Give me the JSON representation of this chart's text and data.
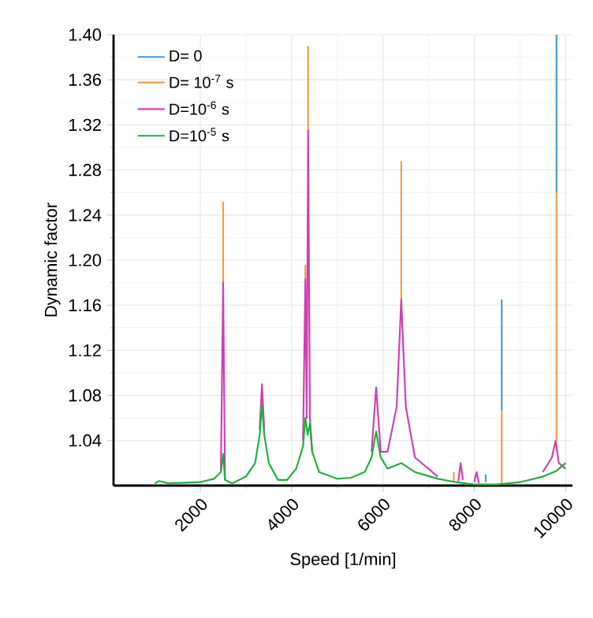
{
  "chart_data": {
    "type": "line",
    "xlabel": "Speed [1/min]",
    "ylabel": "Dynamic factor",
    "xlim": [
      100,
      10150
    ],
    "ylim": [
      1.0,
      1.4
    ],
    "xticks": [
      2000,
      4000,
      6000,
      8000,
      10000
    ],
    "yticks": [
      1.04,
      1.08,
      1.12,
      1.16,
      {
        "value": 1.2,
        "label": "1.20"
      },
      1.24,
      1.28,
      1.32,
      1.36,
      {
        "value": 1.4,
        "label": "1.40"
      }
    ],
    "grid": true,
    "legend": "top left",
    "line_style": "solid",
    "series": [
      {
        "name": "D= 0",
        "color": "#4a9ad6",
        "x": [
          8250,
          8250,
          null,
          8600,
          8600,
          null,
          9800,
          9800
        ],
        "values": [
          1.003,
          1.01,
          null,
          1.066,
          1.165,
          null,
          1.26,
          1.4
        ]
      },
      {
        "name": "D= 10$^{-7}$ s",
        "color": "#f0a040",
        "x": [
          2500,
          2500,
          null,
          4300,
          4300,
          null,
          4360,
          4360,
          null,
          6400,
          6400,
          null,
          7550,
          7550,
          null,
          8600,
          8600,
          null,
          9800,
          9800
        ],
        "values": [
          1.18,
          1.252,
          null,
          1.183,
          1.196,
          null,
          1.315,
          1.39,
          null,
          1.165,
          1.288,
          null,
          1.003,
          1.012,
          null,
          1.002,
          1.066,
          null,
          1.04,
          1.26
        ]
      },
      {
        "name": "D=10$^{-6}$ s",
        "color": "#d040b0",
        "x": [
          2450,
          2500,
          2540,
          null,
          3300,
          3350,
          3400,
          null,
          4250,
          4300,
          4330,
          4360,
          4400,
          4450,
          null,
          5750,
          5850,
          5950,
          6100,
          6300,
          6400,
          6500,
          6700,
          7200,
          null,
          7650,
          7700,
          7750,
          null,
          8000,
          8050,
          8100,
          null,
          9500,
          9700,
          9780,
          9850,
          10000
        ],
        "values": [
          1.012,
          1.18,
          1.005,
          null,
          1.05,
          1.09,
          1.05,
          null,
          1.04,
          1.183,
          1.06,
          1.315,
          1.06,
          1.03,
          null,
          1.03,
          1.087,
          1.03,
          1.03,
          1.07,
          1.165,
          1.07,
          1.025,
          1.008,
          null,
          1.004,
          1.02,
          1.005,
          null,
          1.003,
          1.012,
          1.002,
          null,
          1.012,
          1.025,
          1.04,
          1.02,
          1.015
        ]
      },
      {
        "name": "D=10$^{-5}$ s",
        "color": "#20b040",
        "x": [
          1000,
          1100,
          1300,
          2000,
          2300,
          2450,
          2500,
          2540,
          2700,
          3000,
          3200,
          3300,
          3350,
          3400,
          3500,
          3700,
          3900,
          4100,
          4250,
          4300,
          4350,
          4400,
          4450,
          4600,
          5000,
          5300,
          5600,
          5750,
          5850,
          5950,
          6100,
          6400,
          6700,
          7200,
          7600,
          8000,
          8500,
          9000,
          9500,
          9800,
          10000
        ],
        "values": [
          1.002,
          1.004,
          1.002,
          1.003,
          1.006,
          1.012,
          1.028,
          1.005,
          1.002,
          1.008,
          1.02,
          1.045,
          1.072,
          1.045,
          1.02,
          1.005,
          1.005,
          1.015,
          1.035,
          1.06,
          1.045,
          1.055,
          1.03,
          1.012,
          1.006,
          1.007,
          1.012,
          1.025,
          1.048,
          1.025,
          1.015,
          1.02,
          1.012,
          1.006,
          1.003,
          1.001,
          1.001,
          1.003,
          1.008,
          1.013,
          1.02
        ]
      }
    ]
  }
}
